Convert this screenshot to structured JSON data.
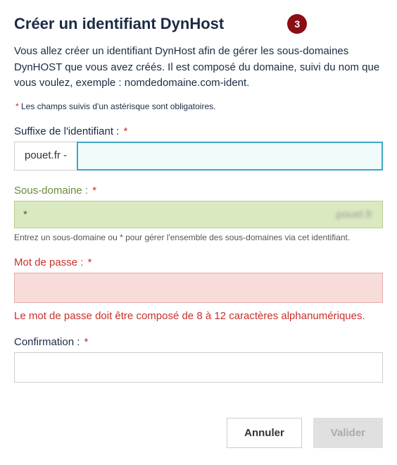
{
  "title": "Créer un identifiant DynHost",
  "step": "3",
  "intro": "Vous allez créer un identifiant DynHost afin de gérer les sous-domaines DynHOST que vous avez créés. Il est composé du domaine, suivi du nom que vous voulez, exemple : nomdedomaine.com-ident.",
  "required_note_asterisk": "*",
  "required_note": " Les champs suivis d'un astérisque sont obligatoires.",
  "fields": {
    "suffix": {
      "label": "Suffixe de l'identifiant :",
      "prefix": "pouet.fr -",
      "value": ""
    },
    "subdomain": {
      "label": "Sous-domaine :",
      "value": "*",
      "suffix": ".pouet.fr",
      "hint": "Entrez un sous-domaine ou * pour gérer l'ensemble des sous-domaines via cet identifiant."
    },
    "password": {
      "label": "Mot de passe :",
      "error": "Le mot de passe doit être composé de 8 à 12 caractères alphanumériques."
    },
    "confirm": {
      "label": "Confirmation :"
    }
  },
  "buttons": {
    "cancel": "Annuler",
    "submit": "Valider"
  },
  "colors": {
    "badge_bg": "#8b0e14",
    "heading": "#1a2b44",
    "error": "#c9302c",
    "success_border": "#b6cf8a",
    "success_bg": "#dbe9c0",
    "focus_border": "#3aa9c4",
    "error_bg": "#f7dcd9",
    "error_border": "#e3b0ad",
    "label_green": "#6a8a3a"
  }
}
